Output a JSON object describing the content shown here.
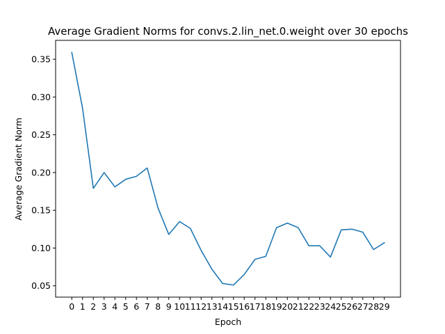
{
  "chart_data": {
    "type": "line",
    "title": "Average Gradient Norms for convs.2.lin_net.0.weight over 30 epochs",
    "xlabel": "Epoch",
    "ylabel": "Average Gradient Norm",
    "x": [
      0,
      1,
      2,
      3,
      4,
      5,
      6,
      7,
      8,
      9,
      10,
      11,
      12,
      13,
      14,
      15,
      16,
      17,
      18,
      19,
      20,
      21,
      22,
      23,
      24,
      25,
      26,
      27,
      28,
      29
    ],
    "y_ticks": [
      0.05,
      0.1,
      0.15,
      0.2,
      0.25,
      0.3,
      0.35
    ],
    "y_tick_labels": [
      "0.05",
      "0.10",
      "0.15",
      "0.20",
      "0.25",
      "0.30",
      "0.35"
    ],
    "xlim": [
      -1.5,
      30.5
    ],
    "ylim": [
      0.035,
      0.375
    ],
    "grid": false,
    "series": [
      {
        "color": "#1f77b4",
        "values": [
          0.359,
          0.285,
          0.179,
          0.2,
          0.181,
          0.191,
          0.195,
          0.206,
          0.153,
          0.118,
          0.135,
          0.126,
          0.097,
          0.072,
          0.053,
          0.051,
          0.065,
          0.085,
          0.089,
          0.127,
          0.133,
          0.127,
          0.103,
          0.103,
          0.088,
          0.124,
          0.125,
          0.121,
          0.098,
          0.107
        ]
      }
    ]
  }
}
